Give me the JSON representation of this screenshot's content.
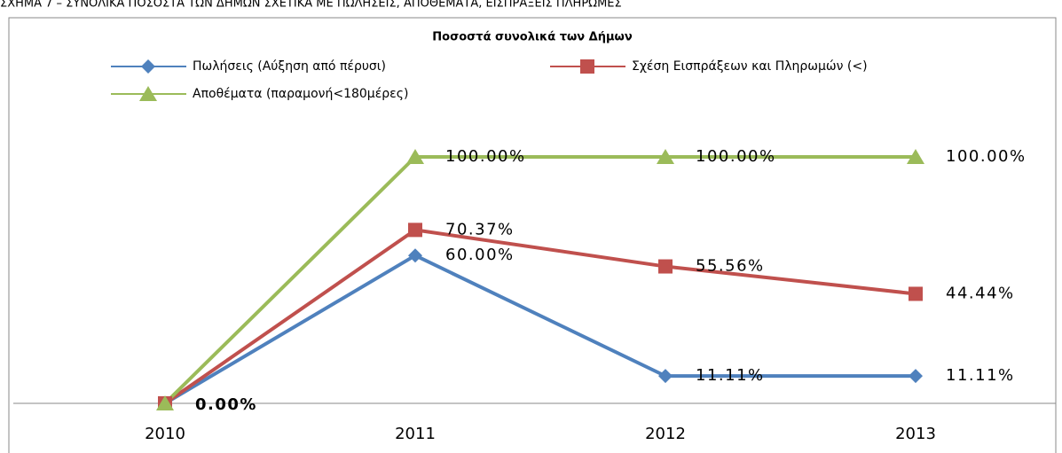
{
  "caption": "ΣΧΗΜΑ 7 – ΣΥΝΟΛΙΚΑ ΠΟΣΟΣΤΑ ΤΩΝ ΔΗΜΩΝ ΣΧΕΤΙΚΑ ΜΕ ΠΩΛΗΣΕΙΣ, ΑΠΟΘΕΜΑΤΑ, ΕΙΣΠΡΑΞΕΙΣ ΠΛΗΡΩΜΕΣ",
  "chart_data": {
    "type": "line",
    "title": "Ποσοστά συνολικά των Δήμων",
    "categories": [
      "2010",
      "2011",
      "2012",
      "2013"
    ],
    "ylim": [
      0,
      100
    ],
    "series": [
      {
        "name": "Πωλήσεις (Αύξηση από πέρυσι)",
        "color": "#4f81bd",
        "marker": "diamond",
        "values": [
          0,
          60,
          11.11,
          11.11
        ],
        "value_labels": [
          "0.00%",
          "60.00%",
          "11.11%",
          "11.11%"
        ]
      },
      {
        "name": "Σχέση Εισπράξεων και Πληρωμών (<)",
        "color": "#c0504d",
        "marker": "square",
        "values": [
          0,
          70.37,
          55.56,
          44.44
        ],
        "value_labels": [
          null,
          "70.37%",
          "55.56%",
          "44.44%"
        ]
      },
      {
        "name": "Αποθέματα (παραμονή<180μέρες)",
        "color": "#9bbb59",
        "marker": "triangle",
        "values": [
          0,
          100,
          100,
          100
        ],
        "value_labels": [
          null,
          "100.00%",
          "100.00%",
          "100.00%"
        ]
      }
    ]
  }
}
